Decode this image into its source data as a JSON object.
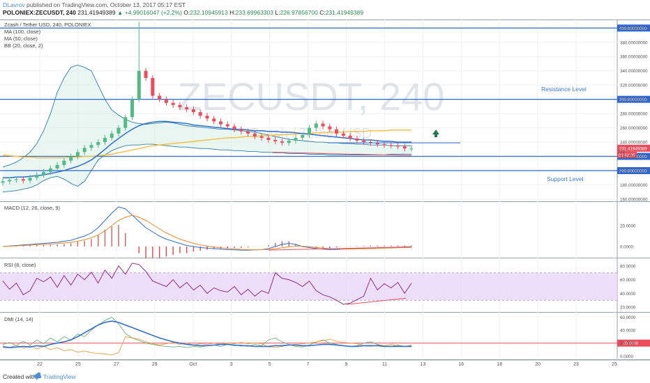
{
  "header": {
    "author": "DLavrov",
    "published": "published on TradingView.com, October 13, 2017 05:17 EST",
    "ticker": "POLONIEX:ZECUSDT, 240",
    "price": "231.41949389",
    "change": "+4.99016047 (+2.2%)",
    "open_label": "O:",
    "open": "232.10945913",
    "high_label": "H:",
    "high": "233.69963303",
    "low_label": "L:",
    "low": "226.97856700",
    "close_label": "C:",
    "close": "231.41949389"
  },
  "legend": {
    "title": "Zcash / Tether USD, 240, POLONIEX",
    "ma100": "MA (100, close)",
    "ma50": "MA (50, close)",
    "bb": "BB (20, close, 2)"
  },
  "watermark": {
    "main": "ZECUSDT, 240",
    "sub": "Zcash / Tether USD"
  },
  "annotations": {
    "resistance": "Resistance Level",
    "support": "Support Level"
  },
  "price_badges": {
    "last": "231.41949389",
    "countdown": "01:42:26",
    "partial": "221"
  },
  "footer": {
    "made": "Created with",
    "brand": "TradingView"
  },
  "colors": {
    "up": "#53b987",
    "down": "#eb4d5c",
    "level": "#2f66d0",
    "ma100": "#f6c244",
    "ma50": "#2c6fd1",
    "bb": "#2a7fa6",
    "macd": "#2c6fd1",
    "signal": "#f08a24",
    "rsi": "#8e2f86",
    "rsi_band": "#e9d7f7",
    "pdi": "#6eae7b",
    "mdi": "#e8a040",
    "adx": "#2c6fd1"
  },
  "chart_data": [
    {
      "type": "candlestick",
      "title": "Zcash / Tether USD, 240, POLONIEX",
      "y_ticks": [
        "400.00000000",
        "380.00000000",
        "360.00000000",
        "340.00000000",
        "320.00000000",
        "300.00000000",
        "280.00000000",
        "260.00000000",
        "240.00000000",
        "220.00000000",
        "200.00000000",
        "180.00000000",
        "160.00000000"
      ],
      "ylim": [
        158,
        412
      ],
      "x_ticks": [
        "22",
        "25",
        "27",
        "29",
        "Oct",
        "3",
        "5",
        "7",
        "9",
        "11",
        "13",
        "16",
        "18",
        "20",
        "23",
        "25"
      ],
      "levels": [
        400,
        300,
        220,
        200
      ],
      "last_price": 231.42,
      "series": [
        {
          "name": "MA (100, close)",
          "values": [
            222,
            221,
            220,
            219,
            219,
            218,
            218,
            218,
            218,
            218,
            219,
            219,
            220,
            220,
            221,
            222,
            223,
            225,
            227,
            229,
            231,
            233,
            235,
            236,
            237,
            238,
            239,
            240,
            241,
            242,
            243,
            244,
            245,
            246,
            246,
            247,
            248,
            248,
            249,
            249,
            250,
            250,
            251,
            251,
            252,
            252,
            253,
            253,
            254,
            254,
            254,
            255,
            255,
            255,
            256,
            256,
            256,
            257,
            257,
            257,
            257
          ]
        },
        {
          "name": "MA (50, close)",
          "values": [
            190,
            190,
            191,
            191,
            192,
            193,
            194,
            196,
            198,
            200,
            203,
            206,
            210,
            215,
            222,
            230,
            238,
            245,
            252,
            258,
            263,
            266,
            268,
            269,
            269,
            268,
            267,
            266,
            264,
            263,
            262,
            261,
            260,
            259,
            258,
            258,
            257,
            256,
            256,
            255,
            255,
            254,
            254,
            253,
            252,
            251,
            250,
            249,
            248,
            247,
            246,
            245,
            244,
            243,
            243,
            242,
            241,
            241,
            240,
            240,
            240
          ]
        },
        {
          "name": "BB (20, close, 2)",
          "values": [
            205,
            208,
            212,
            218,
            226,
            238,
            256,
            280,
            310,
            330,
            345,
            348,
            345,
            340,
            320,
            300,
            285,
            278,
            272,
            268,
            266,
            265,
            266,
            267,
            268,
            267,
            265,
            263,
            262,
            261,
            260,
            259,
            258,
            258,
            257,
            256,
            255,
            254,
            252,
            250,
            248,
            246,
            244,
            243,
            242,
            241,
            240,
            240,
            239,
            239,
            238,
            238,
            237,
            237,
            236,
            236,
            236,
            235,
            235,
            235,
            235
          ]
        },
        {
          "name": "BB lower",
          "values": [
            170,
            171,
            172,
            174,
            176,
            180,
            186,
            190,
            192,
            188,
            182,
            178,
            185,
            200,
            215,
            222,
            228,
            232,
            235,
            236,
            236,
            237,
            237,
            236,
            235,
            234,
            233,
            233,
            232,
            231,
            231,
            230,
            229,
            229,
            228,
            228,
            227,
            227,
            226,
            226,
            225,
            225,
            224,
            224,
            224,
            223,
            223,
            223,
            222,
            222,
            222,
            222,
            222,
            222,
            222,
            222,
            222,
            223,
            223,
            223,
            223
          ]
        },
        {
          "name": "Close",
          "values": [
            185,
            187,
            188,
            186,
            190,
            194,
            198,
            203,
            208,
            214,
            220,
            226,
            232,
            236,
            240,
            246,
            252,
            260,
            275,
            300,
            340,
            330,
            305,
            300,
            295,
            292,
            289,
            286,
            282,
            277,
            273,
            269,
            265,
            262,
            258,
            255,
            252,
            248,
            246,
            243,
            241,
            239,
            242,
            246,
            250,
            260,
            266,
            262,
            258,
            252,
            249,
            245,
            242,
            240,
            239,
            237,
            236,
            235,
            234,
            231,
            231
          ]
        }
      ]
    },
    {
      "type": "line",
      "title": "MACD (12, 26, close, 9)",
      "y_ticks": [
        "20.0000",
        "0.0000"
      ],
      "ylim": [
        -10,
        42
      ],
      "series": [
        {
          "name": "MACD",
          "values": [
            0,
            0.5,
            1,
            1.5,
            2,
            2.5,
            3,
            3.5,
            4,
            5,
            6,
            8,
            10,
            13,
            18,
            25,
            32,
            38,
            36,
            30,
            24,
            18,
            14,
            10,
            7,
            5,
            3,
            1,
            0,
            -1,
            -1.5,
            -2,
            -2.5,
            -3,
            -3.2,
            -3.5,
            -3.5,
            -3.2,
            -3,
            -2,
            0,
            2,
            3,
            2,
            0,
            -1,
            -2,
            -2.5,
            -3,
            -2.8,
            -2.5,
            -2.2,
            -2,
            -1.8,
            -1.5,
            -1.2,
            -1,
            -0.8,
            -0.6,
            -0.4,
            -0.2
          ]
        },
        {
          "name": "Signal",
          "values": [
            0,
            0.3,
            0.6,
            1,
            1.3,
            1.7,
            2,
            2.4,
            2.8,
            3.4,
            4,
            5,
            6.5,
            8.5,
            11,
            15,
            20,
            25,
            28,
            30,
            28,
            25,
            21,
            17,
            13,
            10,
            7,
            5,
            3,
            1.5,
            0.5,
            -0.5,
            -1.2,
            -1.8,
            -2.3,
            -2.7,
            -3,
            -3.1,
            -3.1,
            -2.8,
            -2.2,
            -1.2,
            -0.2,
            0.4,
            0.3,
            -0.2,
            -0.9,
            -1.5,
            -2,
            -2.3,
            -2.4,
            -2.4,
            -2.3,
            -2.2,
            -2,
            -1.8,
            -1.6,
            -1.4,
            -1.2,
            -1,
            -0.8
          ]
        }
      ]
    },
    {
      "type": "line",
      "title": "RSI (8, close)",
      "y_ticks": [
        "80.0000",
        "60.0000",
        "40.0000",
        "20.0000"
      ],
      "ylim": [
        14,
        90
      ],
      "band": [
        30,
        70
      ],
      "series": [
        {
          "name": "RSI",
          "values": [
            58,
            46,
            55,
            38,
            44,
            62,
            57,
            64,
            49,
            66,
            52,
            68,
            60,
            71,
            55,
            74,
            62,
            80,
            68,
            84,
            82,
            72,
            58,
            54,
            50,
            60,
            48,
            56,
            45,
            52,
            40,
            48,
            44,
            42,
            50,
            38,
            46,
            36,
            44,
            40,
            70,
            62,
            60,
            56,
            50,
            58,
            44,
            38,
            35,
            30,
            24,
            26,
            31,
            36,
            62,
            45,
            54,
            48,
            56,
            40,
            55
          ]
        }
      ]
    },
    {
      "type": "line",
      "title": "DMI (14, 14)",
      "y_ticks": [
        "60.0000",
        "40.0000",
        "20.0000",
        "0.0000"
      ],
      "ylim": [
        -4,
        66
      ],
      "level": 20,
      "series": [
        {
          "name": "+DI",
          "values": [
            18,
            21,
            16,
            23,
            17,
            25,
            19,
            28,
            22,
            30,
            25,
            34,
            30,
            40,
            48,
            55,
            60,
            50,
            35,
            28,
            24,
            20,
            18,
            16,
            15,
            14,
            15,
            13,
            15,
            14,
            16,
            17,
            15,
            18,
            16,
            17,
            15,
            18,
            16,
            25,
            28,
            22,
            18,
            15,
            14,
            17,
            22,
            25,
            20,
            18,
            16,
            15,
            16,
            20,
            22,
            18,
            16,
            15,
            17,
            15,
            16
          ]
        },
        {
          "name": "-DI",
          "values": [
            16,
            13,
            17,
            12,
            16,
            11,
            15,
            10,
            13,
            8,
            10,
            6,
            8,
            5,
            4,
            3,
            2,
            5,
            30,
            28,
            26,
            22,
            19,
            17,
            19,
            21,
            18,
            20,
            17,
            19,
            18,
            20,
            18,
            20,
            19,
            21,
            19,
            20,
            19,
            14,
            13,
            15,
            17,
            18,
            19,
            20,
            22,
            24,
            26,
            23,
            21,
            20,
            19,
            16,
            15,
            17,
            16,
            18,
            16,
            15,
            17
          ]
        },
        {
          "name": "ADX",
          "values": [
            14,
            13,
            14,
            15,
            14,
            16,
            15,
            18,
            20,
            22,
            25,
            30,
            36,
            42,
            48,
            52,
            54,
            52,
            48,
            44,
            40,
            36,
            32,
            28,
            25,
            22,
            20,
            18,
            17,
            16,
            16,
            17,
            18,
            18,
            17,
            16,
            16,
            15,
            15,
            15,
            16,
            16,
            17,
            17,
            16,
            16,
            17,
            18,
            18,
            17,
            16,
            15,
            15,
            16,
            16,
            16,
            15,
            15,
            15,
            15,
            15
          ]
        }
      ]
    }
  ]
}
